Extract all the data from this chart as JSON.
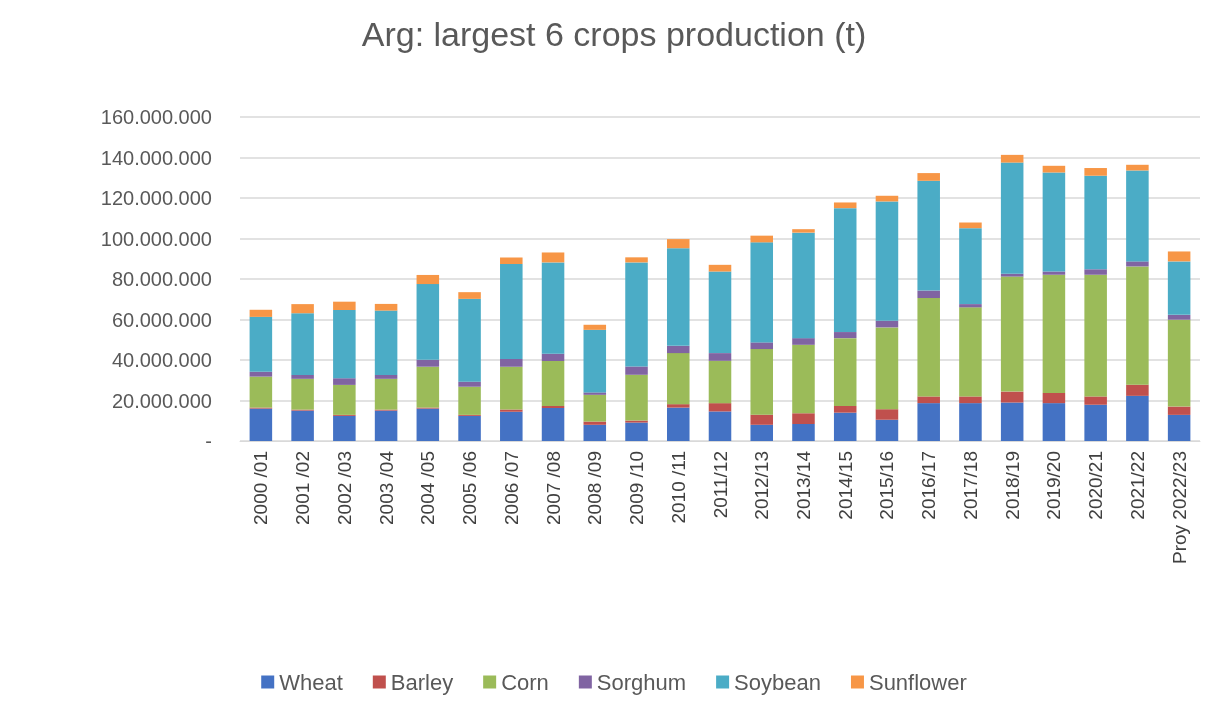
{
  "chart_data": {
    "type": "bar",
    "title": "Arg: largest 6 crops production (t)",
    "stacked": true,
    "grid": "y",
    "legend": "bottom",
    "categories": [
      "2000 /01",
      "2001 /02",
      "2002 /03",
      "2003 /04",
      "2004 /05",
      "2005 /06",
      "2006 /07",
      "2007 /08",
      "2008 /09",
      "2009 /10",
      "2010 /11",
      "2011/12",
      "2012/13",
      "2013/14",
      "2014/15",
      "2015/16",
      "2016/17",
      "2017/18",
      "2018/19",
      "2019/20",
      "2020/21",
      "2021/22",
      "Proy 2022/23"
    ],
    "ylim": [
      0,
      160000000
    ],
    "yticks": [
      {
        "value": 0,
        "label": "-"
      },
      {
        "value": 20000000,
        "label": "20.000.000"
      },
      {
        "value": 40000000,
        "label": "40.000.000"
      },
      {
        "value": 60000000,
        "label": "60.000.000"
      },
      {
        "value": 80000000,
        "label": "80.000.000"
      },
      {
        "value": 100000000,
        "label": "100.000.000"
      },
      {
        "value": 120000000,
        "label": "120.000.000"
      },
      {
        "value": 140000000,
        "label": "140.000.000"
      },
      {
        "value": 160000000,
        "label": "160.000.000"
      }
    ],
    "series": [
      {
        "name": "Wheat",
        "color": "#4472c4",
        "values": [
          16000000,
          15000000,
          12400000,
          15000000,
          16000000,
          12400000,
          14500000,
          16300000,
          8000000,
          9100000,
          16500000,
          14600000,
          8000000,
          8400000,
          14000000,
          10500000,
          18700000,
          18700000,
          19000000,
          18700000,
          17900000,
          22300000,
          12900000
        ]
      },
      {
        "name": "Barley",
        "color": "#c0504d",
        "values": [
          500000,
          500000,
          500000,
          500000,
          500000,
          500000,
          1000000,
          1000000,
          1600000,
          1000000,
          1700000,
          4100000,
          5000000,
          5300000,
          3300000,
          5200000,
          3300000,
          3300000,
          5400000,
          5000000,
          4100000,
          5500000,
          4100000
        ]
      },
      {
        "name": "Corn",
        "color": "#9bbb59",
        "values": [
          15300000,
          15200000,
          14800000,
          15200000,
          20200000,
          13900000,
          21200000,
          22200000,
          13200000,
          22600000,
          25200000,
          20900000,
          32400000,
          33800000,
          33500000,
          40400000,
          48600000,
          44000000,
          56800000,
          58400000,
          60100000,
          58400000,
          42900000
        ]
      },
      {
        "name": "Sorghum",
        "color": "#8064a2",
        "values": [
          2400000,
          1900000,
          3300000,
          1900000,
          3400000,
          2500000,
          3800000,
          3600000,
          1200000,
          4100000,
          3600000,
          3800000,
          3300000,
          3300000,
          3000000,
          3300000,
          3700000,
          1600000,
          1400000,
          1600000,
          2700000,
          2500000,
          2400000
        ]
      },
      {
        "name": "Soybean",
        "color": "#4bacc6",
        "values": [
          27100000,
          30500000,
          33700000,
          31800000,
          37400000,
          40900000,
          46900000,
          45100000,
          30900000,
          51400000,
          48200000,
          40300000,
          49400000,
          52100000,
          61200000,
          58900000,
          54200000,
          37500000,
          54900000,
          48900000,
          46200000,
          44900000,
          26400000
        ]
      },
      {
        "name": "Sunflower",
        "color": "#f79646",
        "values": [
          3500000,
          4500000,
          4100000,
          3300000,
          4500000,
          3300000,
          3200000,
          4900000,
          2500000,
          2500000,
          4500000,
          3300000,
          3300000,
          1700000,
          2800000,
          2800000,
          3800000,
          2800000,
          3800000,
          3300000,
          3800000,
          2800000,
          4900000
        ]
      }
    ]
  }
}
